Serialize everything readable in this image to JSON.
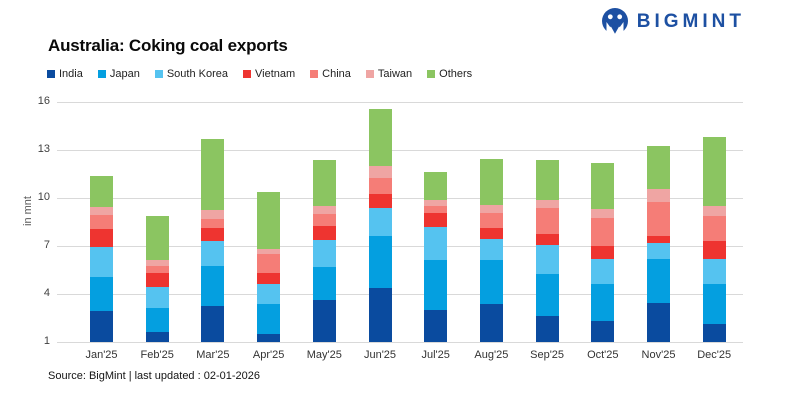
{
  "logo": {
    "text": "BIGMINT",
    "color": "#1d50a2",
    "icon": "bigmint-circle-m-icon"
  },
  "footer": {
    "source": "Source: BigMint | last updated : 02-01-2026"
  },
  "chart_data": {
    "type": "bar",
    "stacked": true,
    "title": "Australia: Coking coal exports",
    "ylabel": "in mnt",
    "xlabel": "",
    "ylim": [
      1,
      16
    ],
    "yticks": [
      1,
      4,
      7,
      10,
      13,
      16
    ],
    "grid": true,
    "legend_position": "top-left",
    "note": "y-axis starts at 1; stacked segment values below are the visible heights in mnt above the axis floor",
    "categories": [
      "Jan'25",
      "Feb'25",
      "Mar'25",
      "Apr'25",
      "May'25",
      "Jun'25",
      "Jul'25",
      "Aug'25",
      "Sep'25",
      "Oct'25",
      "Nov'25",
      "Dec'25"
    ],
    "bar_totals_top": [
      11.4,
      8.9,
      13.7,
      10.35,
      12.35,
      15.55,
      11.6,
      12.45,
      12.4,
      12.2,
      13.25,
      13.8
    ],
    "series": [
      {
        "name": "India",
        "color": "#0a4b9f",
        "values": [
          1.95,
          0.6,
          2.25,
          0.5,
          2.6,
          3.4,
          2.0,
          2.35,
          1.65,
          1.3,
          2.45,
          1.1
        ]
      },
      {
        "name": "Japan",
        "color": "#049fe0",
        "values": [
          2.1,
          1.55,
          2.5,
          1.9,
          2.1,
          3.25,
          3.1,
          2.8,
          2.6,
          2.35,
          2.75,
          2.55
        ]
      },
      {
        "name": "South Korea",
        "color": "#55c3f0",
        "values": [
          1.9,
          1.3,
          1.55,
          1.2,
          1.65,
          1.7,
          2.1,
          1.3,
          1.8,
          1.55,
          1.0,
          1.55
        ]
      },
      {
        "name": "Vietnam",
        "color": "#ee3430",
        "values": [
          1.1,
          0.85,
          0.8,
          0.7,
          0.9,
          0.9,
          0.85,
          0.65,
          0.7,
          0.8,
          0.4,
          1.1
        ]
      },
      {
        "name": "China",
        "color": "#f57d77",
        "values": [
          0.9,
          0.45,
          0.6,
          1.2,
          0.75,
          1.0,
          0.45,
          0.95,
          1.6,
          1.75,
          2.15,
          1.6
        ]
      },
      {
        "name": "Taiwan",
        "color": "#efa5a3",
        "values": [
          0.5,
          0.4,
          0.55,
          0.3,
          0.5,
          0.75,
          0.4,
          0.5,
          0.55,
          0.55,
          0.8,
          0.6
        ]
      },
      {
        "name": "Others",
        "color": "#8bc561",
        "values": [
          1.95,
          2.75,
          4.45,
          3.55,
          2.85,
          3.55,
          1.7,
          2.9,
          2.5,
          2.9,
          2.7,
          4.3
        ]
      }
    ]
  }
}
